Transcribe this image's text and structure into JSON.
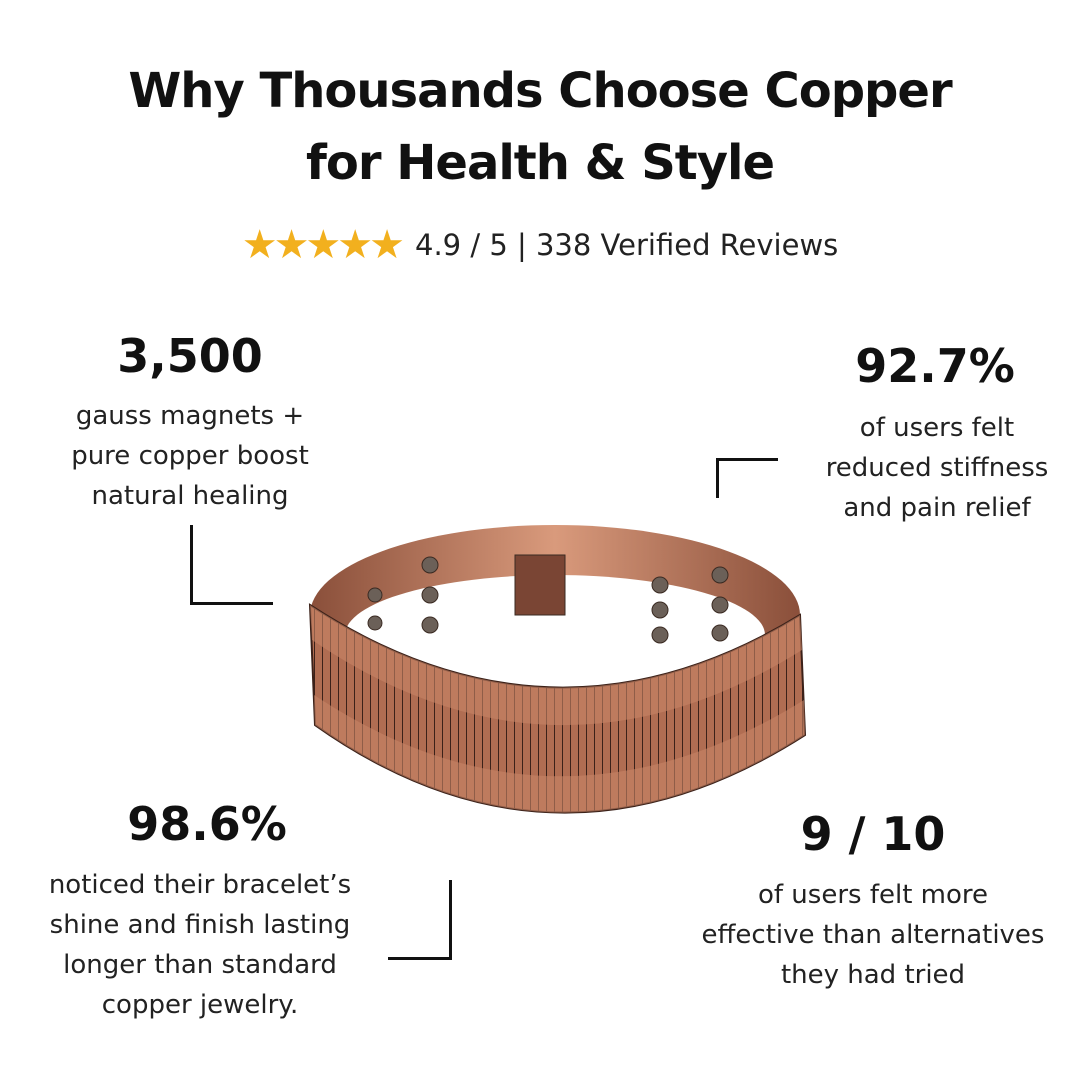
{
  "title": {
    "line1": "Why Thousands Choose Copper",
    "line2": "for Health & Style"
  },
  "rating": {
    "stars": "★★★★★",
    "star_color": "#f2b01e",
    "text": "4.9 / 5 | 338 Verified Reviews"
  },
  "stats": [
    {
      "value": "3,500",
      "lines": [
        "gauss magnets +",
        "pure copper boost",
        "natural healing"
      ]
    },
    {
      "value": "92.7%",
      "lines": [
        "of users felt",
        "reduced stiffness",
        "and pain relief"
      ]
    },
    {
      "value": "98.6%",
      "lines": [
        "noticed their bracelet’s",
        "shine and finish lasting",
        "longer than standard",
        "copper jewelry."
      ]
    },
    {
      "value": "9 / 10",
      "lines": [
        "of users felt more",
        "effective than alternatives",
        "they had tried"
      ]
    }
  ],
  "product": {
    "image": "copper-magnetic-bracelet",
    "copper_color": "#c07a5a"
  }
}
